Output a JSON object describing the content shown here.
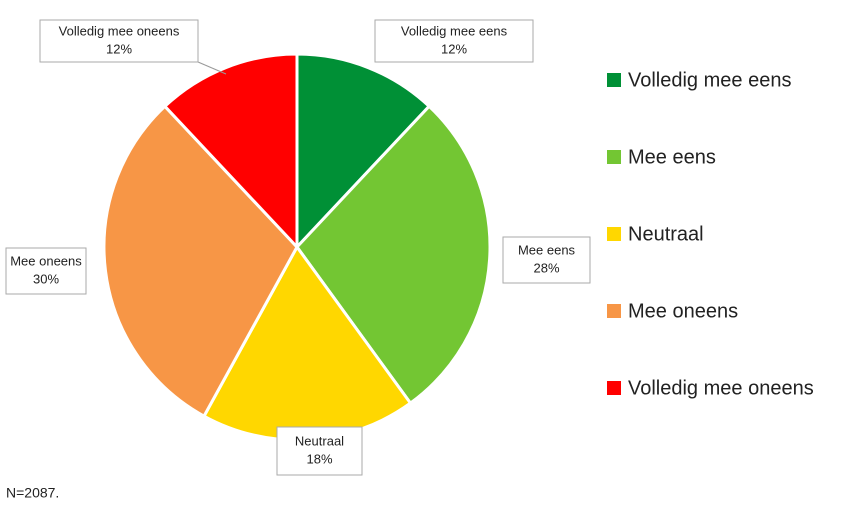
{
  "chart_data": {
    "type": "pie",
    "categories": [
      "Volledig mee eens",
      "Mee eens",
      "Neutraal",
      "Mee oneens",
      "Volledig mee oneens"
    ],
    "values": [
      12,
      28,
      18,
      30,
      12
    ],
    "value_labels": [
      "12%",
      "28%",
      "18%",
      "30%",
      "12%"
    ],
    "colors": [
      "#009036",
      "#73c633",
      "#ffd700",
      "#f79646",
      "#ff0000"
    ],
    "legend": "right",
    "footnote": "N=2087."
  }
}
